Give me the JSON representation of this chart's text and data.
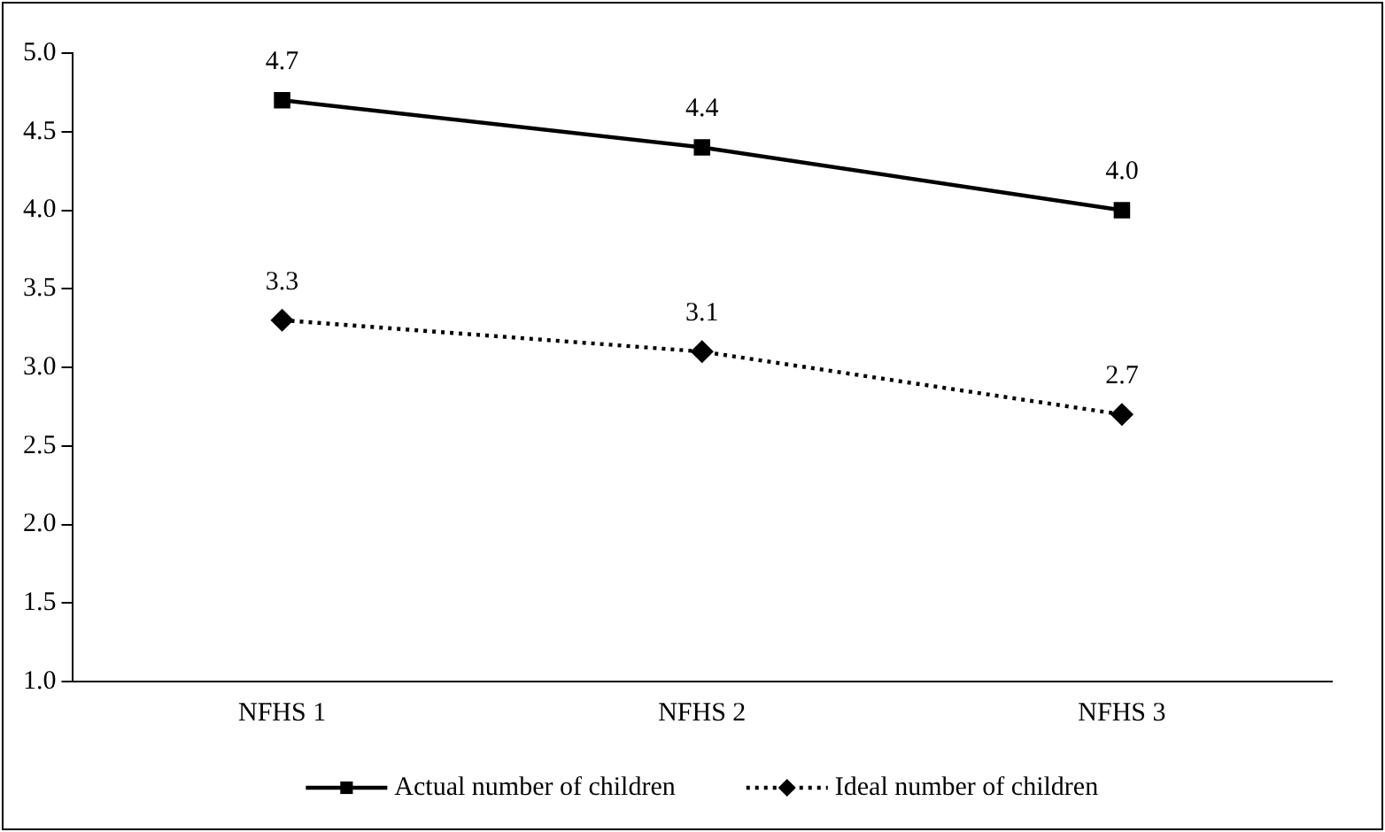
{
  "chart_data": {
    "type": "line",
    "categories": [
      "NFHS 1",
      "NFHS 2",
      "NFHS 3"
    ],
    "series": [
      {
        "name": "Actual number of children",
        "color": "#000000",
        "values": [
          4.7,
          4.4,
          4.0
        ],
        "value_labels": [
          "4.7",
          "4.4",
          "4.0"
        ],
        "marker": "square",
        "line_style": "solid"
      },
      {
        "name": "Ideal number of children",
        "color": "#000000",
        "values": [
          3.3,
          3.1,
          2.7
        ],
        "value_labels": [
          "3.3",
          "3.1",
          "2.7"
        ],
        "marker": "diamond",
        "line_style": "dotted"
      }
    ],
    "ylim": [
      1.0,
      5.0
    ],
    "yticks": [
      {
        "value": 1,
        "label": "1.0"
      },
      1.5,
      {
        "value": 2,
        "label": "2.0"
      },
      2.5,
      {
        "value": 3,
        "label": "3.0"
      },
      3.5,
      {
        "value": 4,
        "label": "4.0"
      },
      4.5,
      {
        "value": 5,
        "label": "5.0"
      }
    ],
    "grid": false,
    "legend": "bottom"
  }
}
